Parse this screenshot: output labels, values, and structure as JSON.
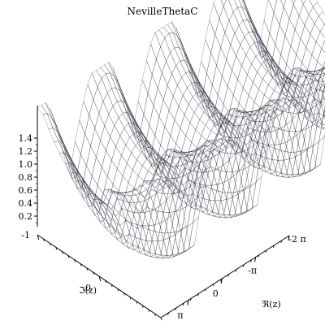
{
  "chart_data": {
    "type": "surface3d",
    "title": "NevilleThetaC",
    "z_axis": {
      "ticks": [
        "0.2",
        "0.4",
        "0.6",
        "0.8",
        "1.0",
        "1.2",
        "1.4"
      ],
      "range": [
        0.1,
        1.4
      ]
    },
    "imag_axis": {
      "label": "ℑ(z)",
      "ticks": [
        "-1",
        "0"
      ],
      "range": [
        -1,
        1
      ]
    },
    "real_axis": {
      "label": "ℜ(z)",
      "ticks": [
        "-2 π",
        "-π",
        "0",
        "π"
      ],
      "range": [
        -2,
        1.35
      ]
    },
    "surface": {
      "description_function": "NevilleThetaC(z, k)",
      "ridge_count": 4,
      "ridge_peak_value": 1.4,
      "valley_min_value": 0.1,
      "colors": [
        "#d04890",
        "#8a3060",
        "#2a3a8a",
        "#3a7ad0",
        "#40c8e0",
        "#30c0a0",
        "#a040c0"
      ]
    }
  }
}
